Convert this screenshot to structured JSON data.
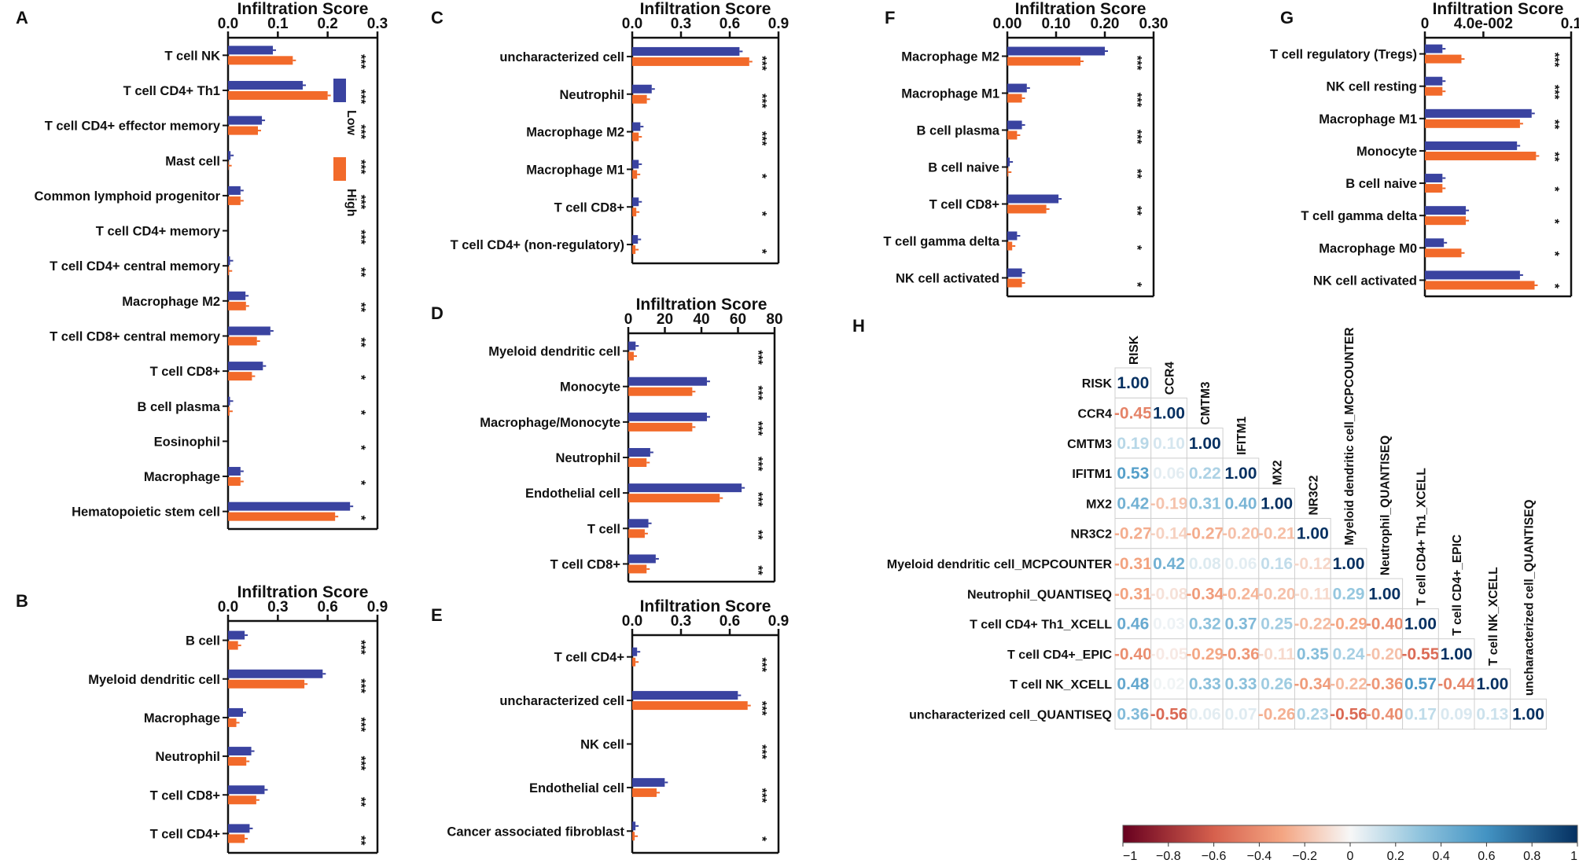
{
  "colors": {
    "low": "#3a43a0",
    "high": "#f26a2a",
    "axis": "#111111"
  },
  "legend": {
    "low_label": "Low",
    "high_label": "High"
  },
  "chart_data": [
    {
      "type": "bar",
      "panel": "A",
      "title": "Infiltration Score",
      "xlim": [
        0,
        0.3
      ],
      "ticks": [
        0,
        0.1,
        0.2,
        0.3
      ],
      "tick_labels": [
        "0.0",
        "0.1",
        "0.2",
        "0.3"
      ],
      "categories": [
        "T cell NK",
        "T cell CD4+ Th1",
        "T cell CD4+ effector memory",
        "Mast cell",
        "Common lymphoid progenitor",
        "T cell CD4+ memory",
        "T cell CD4+ central memory",
        "Macrophage M2",
        "T cell CD8+ central memory",
        "T cell CD8+",
        "B cell plasma",
        "Eosinophil",
        "Macrophage",
        "Hematopoietic stem cell"
      ],
      "series": [
        {
          "name": "Low",
          "values": [
            0.09,
            0.15,
            0.068,
            0.005,
            0.025,
            0,
            0.004,
            0.035,
            0.085,
            0.07,
            0.004,
            0,
            0.025,
            0.245
          ]
        },
        {
          "name": "High",
          "values": [
            0.13,
            0.2,
            0.06,
            0.001,
            0.025,
            0,
            0.002,
            0.036,
            0.058,
            0.048,
            0.003,
            0,
            0.025,
            0.215
          ]
        }
      ],
      "significance": [
        "***",
        "***",
        "***",
        "***",
        "***",
        "***",
        "**",
        "**",
        "**",
        "*",
        "*",
        "*",
        "*",
        "*"
      ]
    },
    {
      "type": "bar",
      "panel": "B",
      "title": "Infiltration Score",
      "xlim": [
        0,
        0.9
      ],
      "ticks": [
        0,
        0.3,
        0.6,
        0.9
      ],
      "tick_labels": [
        "0.0",
        "0.3",
        "0.6",
        "0.9"
      ],
      "categories": [
        "B cell",
        "Myeloid dendritic cell",
        "Macrophage",
        "Neutrophil",
        "T cell CD8+",
        "T cell CD4+"
      ],
      "series": [
        {
          "name": "Low",
          "values": [
            0.1,
            0.57,
            0.09,
            0.14,
            0.22,
            0.13
          ]
        },
        {
          "name": "High",
          "values": [
            0.06,
            0.46,
            0.05,
            0.11,
            0.17,
            0.1
          ]
        }
      ],
      "significance": [
        "***",
        "***",
        "***",
        "***",
        "**",
        "**"
      ]
    },
    {
      "type": "bar",
      "panel": "C",
      "title": "Infiltration Score",
      "xlim": [
        0,
        0.9
      ],
      "ticks": [
        0,
        0.3,
        0.6,
        0.9
      ],
      "tick_labels": [
        "0.0",
        "0.3",
        "0.6",
        "0.9"
      ],
      "categories": [
        "uncharacterized cell",
        "Neutrophil",
        "Macrophage M2",
        "Macrophage M1",
        "T cell CD8+",
        "T cell CD4+ (non-regulatory)"
      ],
      "series": [
        {
          "name": "Low",
          "values": [
            0.66,
            0.12,
            0.05,
            0.04,
            0.04,
            0.035
          ]
        },
        {
          "name": "High",
          "values": [
            0.72,
            0.09,
            0.04,
            0.03,
            0.025,
            0.02
          ]
        }
      ],
      "significance": [
        "***",
        "***",
        "***",
        "*",
        "*",
        "*"
      ]
    },
    {
      "type": "bar",
      "panel": "D",
      "title": "Infiltration Score",
      "xlim": [
        0,
        80
      ],
      "ticks": [
        0,
        20,
        40,
        60,
        80
      ],
      "tick_labels": [
        "0",
        "20",
        "40",
        "60",
        "80"
      ],
      "categories": [
        "Myeloid dendritic cell",
        "Monocyte",
        "Macrophage/Monocyte",
        "Neutrophil",
        "Endothelial cell",
        "T cell",
        "T cell CD8+"
      ],
      "series": [
        {
          "name": "Low",
          "values": [
            4,
            43,
            43,
            12,
            62,
            11,
            15
          ]
        },
        {
          "name": "High",
          "values": [
            3,
            35,
            35,
            10,
            50,
            9,
            10
          ]
        }
      ],
      "significance": [
        "***",
        "***",
        "***",
        "***",
        "***",
        "**",
        "**"
      ]
    },
    {
      "type": "bar",
      "panel": "E",
      "title": "Infiltration Score",
      "xlim": [
        0,
        0.9
      ],
      "ticks": [
        0,
        0.3,
        0.6,
        0.9
      ],
      "tick_labels": [
        "0.0",
        "0.3",
        "0.6",
        "0.9"
      ],
      "categories": [
        "T cell CD4+",
        "uncharacterized cell",
        "NK cell",
        "Endothelial cell",
        "Cancer associated fibroblast"
      ],
      "series": [
        {
          "name": "Low",
          "values": [
            0.03,
            0.65,
            0,
            0.2,
            0.02
          ]
        },
        {
          "name": "High",
          "values": [
            0.02,
            0.71,
            0,
            0.15,
            0.015
          ]
        }
      ],
      "significance": [
        "***",
        "***",
        "***",
        "***",
        "*"
      ]
    },
    {
      "type": "bar",
      "panel": "F",
      "title": "Infiltration Score",
      "xlim": [
        0,
        0.3
      ],
      "ticks": [
        0,
        0.1,
        0.2,
        0.3
      ],
      "tick_labels": [
        "0.00",
        "0.10",
        "0.20",
        "0.30"
      ],
      "categories": [
        "Macrophage M2",
        "Macrophage M1",
        "B cell plasma",
        "B cell naive",
        "T cell CD8+",
        "T cell gamma delta",
        "NK cell activated"
      ],
      "series": [
        {
          "name": "Low",
          "values": [
            0.2,
            0.04,
            0.03,
            0.005,
            0.105,
            0.02,
            0.03
          ]
        },
        {
          "name": "High",
          "values": [
            0.15,
            0.03,
            0.02,
            0.002,
            0.08,
            0.01,
            0.03
          ]
        }
      ],
      "significance": [
        "***",
        "***",
        "***",
        "**",
        "**",
        "*",
        "*"
      ]
    },
    {
      "type": "bar",
      "panel": "G",
      "title": "Infiltration Score",
      "xlim": [
        0,
        0.1
      ],
      "ticks": [
        0,
        0.04,
        0.1
      ],
      "tick_labels": [
        "0",
        "4.0e-002",
        "0.1"
      ],
      "categories": [
        "T cell regulatory (Tregs)",
        "NK cell resting",
        "Macrophage M1",
        "Monocyte",
        "B cell naive",
        "T cell gamma delta",
        "Macrophage M0",
        "NK cell activated"
      ],
      "series": [
        {
          "name": "Low",
          "values": [
            0.012,
            0.012,
            0.073,
            0.063,
            0.012,
            0.028,
            0.013,
            0.065
          ]
        },
        {
          "name": "High",
          "values": [
            0.025,
            0.012,
            0.065,
            0.076,
            0.012,
            0.028,
            0.025,
            0.075
          ]
        }
      ],
      "significance": [
        "***",
        "***",
        "**",
        "**",
        "*",
        "*",
        "*",
        "*"
      ]
    },
    {
      "type": "heatmap",
      "panel": "H",
      "labels": [
        "RISK",
        "CCR4",
        "CMTM3",
        "IFITM1",
        "MX2",
        "NR3C2",
        "Myeloid dendritic cell_MCPCOUNTER",
        "Neutrophil_QUANTISEQ",
        "T cell CD4+ Th1_XCELL",
        "T cell CD4+_EPIC",
        "T cell NK_XCELL",
        "uncharacterized cell_QUANTISEQ"
      ],
      "matrix": [
        [
          1.0
        ],
        [
          -0.45,
          1.0
        ],
        [
          0.19,
          0.1,
          1.0
        ],
        [
          0.53,
          0.06,
          0.22,
          1.0
        ],
        [
          0.42,
          -0.19,
          0.31,
          0.4,
          1.0
        ],
        [
          -0.27,
          -0.14,
          -0.27,
          -0.2,
          -0.21,
          1.0
        ],
        [
          -0.31,
          0.42,
          0.08,
          0.06,
          0.16,
          -0.12,
          1.0
        ],
        [
          -0.31,
          -0.08,
          -0.34,
          -0.24,
          -0.2,
          -0.11,
          0.29,
          1.0
        ],
        [
          0.46,
          0.03,
          0.32,
          0.37,
          0.25,
          -0.22,
          -0.29,
          -0.4,
          1.0
        ],
        [
          -0.4,
          -0.05,
          -0.29,
          -0.36,
          -0.11,
          0.35,
          0.24,
          -0.2,
          -0.55,
          1.0
        ],
        [
          0.48,
          0.02,
          0.33,
          0.33,
          0.26,
          -0.34,
          -0.22,
          -0.36,
          0.57,
          -0.44,
          1.0
        ],
        [
          0.36,
          -0.56,
          0.06,
          0.07,
          -0.26,
          0.23,
          -0.56,
          -0.4,
          0.17,
          0.09,
          0.13,
          1.0
        ]
      ],
      "colorbar": {
        "range": [
          -1,
          1
        ],
        "ticks": [
          "−1",
          "−0.8",
          "−0.6",
          "−0.4",
          "−0.2",
          "0",
          "0.2",
          "0.4",
          "0.6",
          "0.8",
          "1"
        ]
      }
    }
  ]
}
